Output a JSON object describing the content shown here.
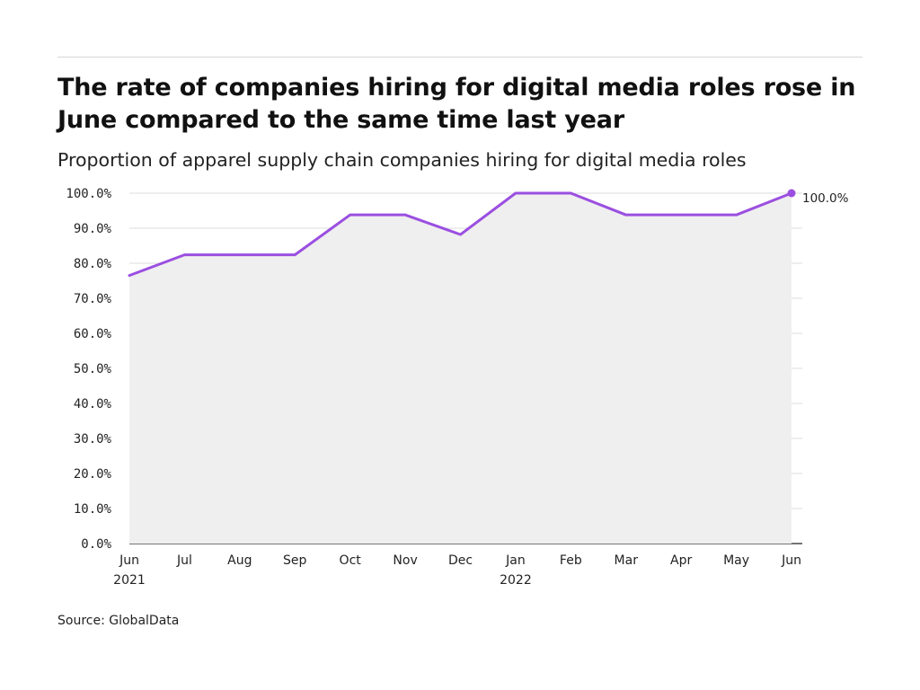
{
  "chart_data": {
    "type": "area",
    "title": "The rate of companies hiring for digital media roles rose in June compared to the same time last year",
    "subtitle": "Proportion of apparel supply chain companies hiring for digital media roles",
    "categories": [
      "Jun",
      "Jul",
      "Aug",
      "Sep",
      "Oct",
      "Nov",
      "Dec",
      "Jan",
      "Feb",
      "Mar",
      "Apr",
      "May",
      "Jun"
    ],
    "year_labels": [
      "2021",
      "",
      "",
      "",
      "",
      "",
      "",
      "2022",
      "",
      "",
      "",
      "",
      ""
    ],
    "series": [
      {
        "values": [
          76.5,
          82.4,
          82.4,
          82.4,
          93.8,
          93.8,
          88.2,
          100.0,
          100.0,
          93.8,
          93.8,
          93.8,
          100.0
        ]
      }
    ],
    "ylim": [
      0,
      100
    ],
    "yticks": [
      "0.0%",
      "10.0%",
      "20.0%",
      "30.0%",
      "40.0%",
      "50.0%",
      "60.0%",
      "70.0%",
      "80.0%",
      "90.0%",
      "100.0%"
    ],
    "end_label": "100.0%",
    "grid": true,
    "colors": {
      "line": "#9b4fe0",
      "area": "#efefef",
      "grid": "#dedede",
      "axis": "#222222"
    }
  },
  "source": "Source: GlobalData"
}
